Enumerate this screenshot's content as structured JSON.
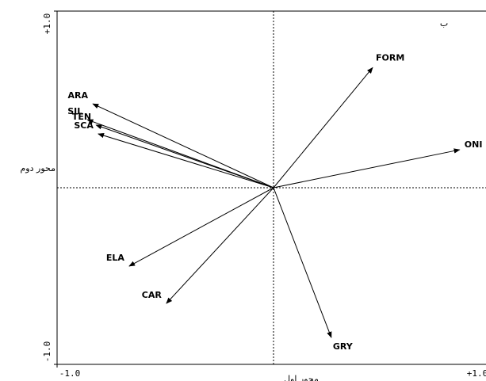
{
  "chart_data": {
    "type": "biplot",
    "point_labels": [
      "FORM",
      "ONI",
      "ARA",
      "SIL",
      "TEN",
      "SCA",
      "ELA",
      "CAR",
      "GRY"
    ],
    "x": [
      0.458,
      0.86,
      -0.835,
      -0.86,
      -0.82,
      -0.81,
      -0.667,
      -0.495,
      0.267
    ],
    "values": [
      0.68,
      0.215,
      0.475,
      0.385,
      0.355,
      0.305,
      -0.444,
      -0.655,
      -0.848
    ],
    "color": "#000000",
    "xlim": [
      -1,
      1
    ],
    "ylim": [
      -1,
      1
    ],
    "xticks": [
      {
        "value": -1,
        "label": "-1.0"
      },
      {
        "value": 1,
        "label": "+1.0"
      }
    ],
    "yticks": [
      {
        "value": -1,
        "label": "-1.0"
      },
      {
        "value": 1,
        "label": "+1.0"
      }
    ],
    "x_label": "محور اول",
    "y_label": "محور دوم",
    "annotation": "ب"
  }
}
